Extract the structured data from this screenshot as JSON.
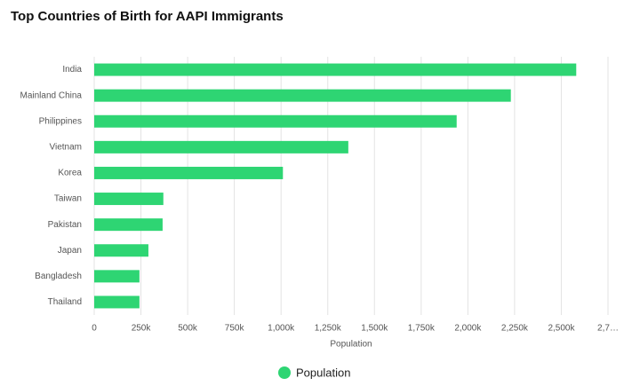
{
  "chart_data": {
    "type": "hbar",
    "title": "Top Countries of Birth for AAPI Immigrants",
    "categories": [
      "India",
      "Mainland China",
      "Philippines",
      "Vietnam",
      "Korea",
      "Taiwan",
      "Pakistan",
      "Japan",
      "Bangladesh",
      "Thailand"
    ],
    "series": [
      {
        "name": "Population",
        "color": "#2ed573",
        "values": [
          2580000,
          2230000,
          1940000,
          1360000,
          1010000,
          370000,
          366000,
          290000,
          242000,
          242000
        ]
      }
    ],
    "xlabel": "Population",
    "xlim": [
      0,
      2750000
    ],
    "xticks": [
      0,
      {
        "value": 250000,
        "label": "250k"
      },
      {
        "value": 500000,
        "label": "500k"
      },
      {
        "value": 750000,
        "label": "750k"
      },
      {
        "value": 1000000,
        "label": "1,000k"
      },
      {
        "value": 1250000,
        "label": "1,250k"
      },
      {
        "value": 1500000,
        "label": "1,500k"
      },
      {
        "value": 1750000,
        "label": "1,750k"
      },
      {
        "value": 2000000,
        "label": "2,000k"
      },
      {
        "value": 2250000,
        "label": "2,250k"
      },
      {
        "value": 2500000,
        "label": "2,500k"
      },
      {
        "value": 2750000,
        "label": "2,7…"
      }
    ],
    "grid": true,
    "legend": "bottom"
  }
}
